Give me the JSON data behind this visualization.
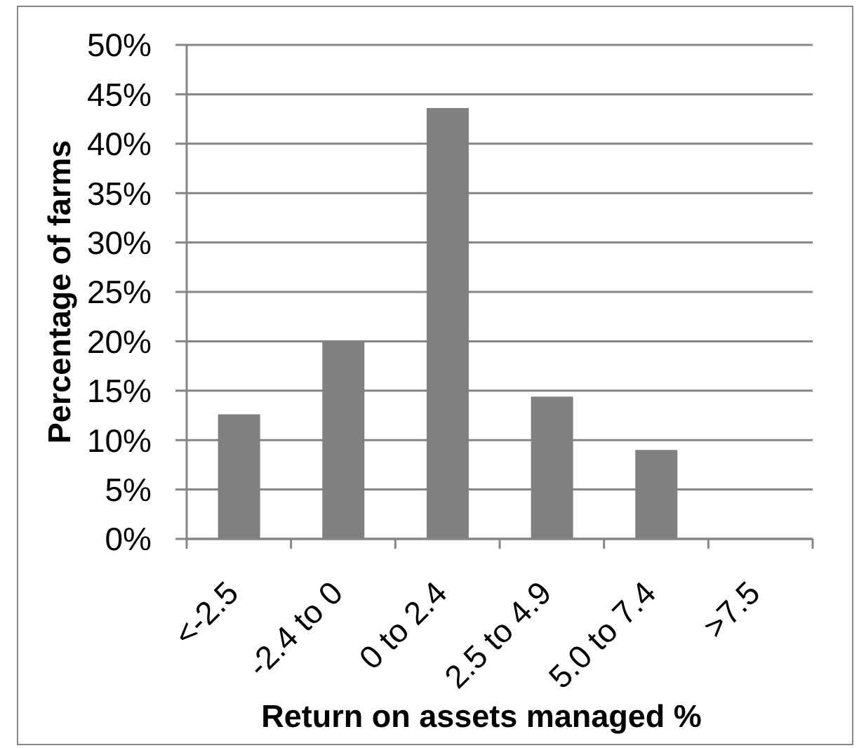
{
  "chart_data": {
    "type": "bar",
    "xlabel": "Return on assets managed %",
    "ylabel": "Percentage of farms",
    "categories": [
      "<-2.5",
      "-2.4 to 0",
      "0 to 2.4",
      "2.5 to 4.9",
      "5.0 to 7.4",
      ">7.5"
    ],
    "values": [
      12.6,
      20,
      43.6,
      14.4,
      9,
      0
    ],
    "color": "#808080",
    "ylim": [
      0,
      50
    ],
    "yticks": [
      {
        "value": 0,
        "label": "0%"
      },
      {
        "value": 5,
        "label": "5%"
      },
      {
        "value": 10,
        "label": "10%"
      },
      {
        "value": 15,
        "label": "15%"
      },
      {
        "value": 20,
        "label": "20%"
      },
      {
        "value": 25,
        "label": "25%"
      },
      {
        "value": 30,
        "label": "30%"
      },
      {
        "value": 35,
        "label": "35%"
      },
      {
        "value": 40,
        "label": "40%"
      },
      {
        "value": 45,
        "label": "45%"
      },
      {
        "value": 50,
        "label": "50%"
      }
    ],
    "grid": "y"
  }
}
